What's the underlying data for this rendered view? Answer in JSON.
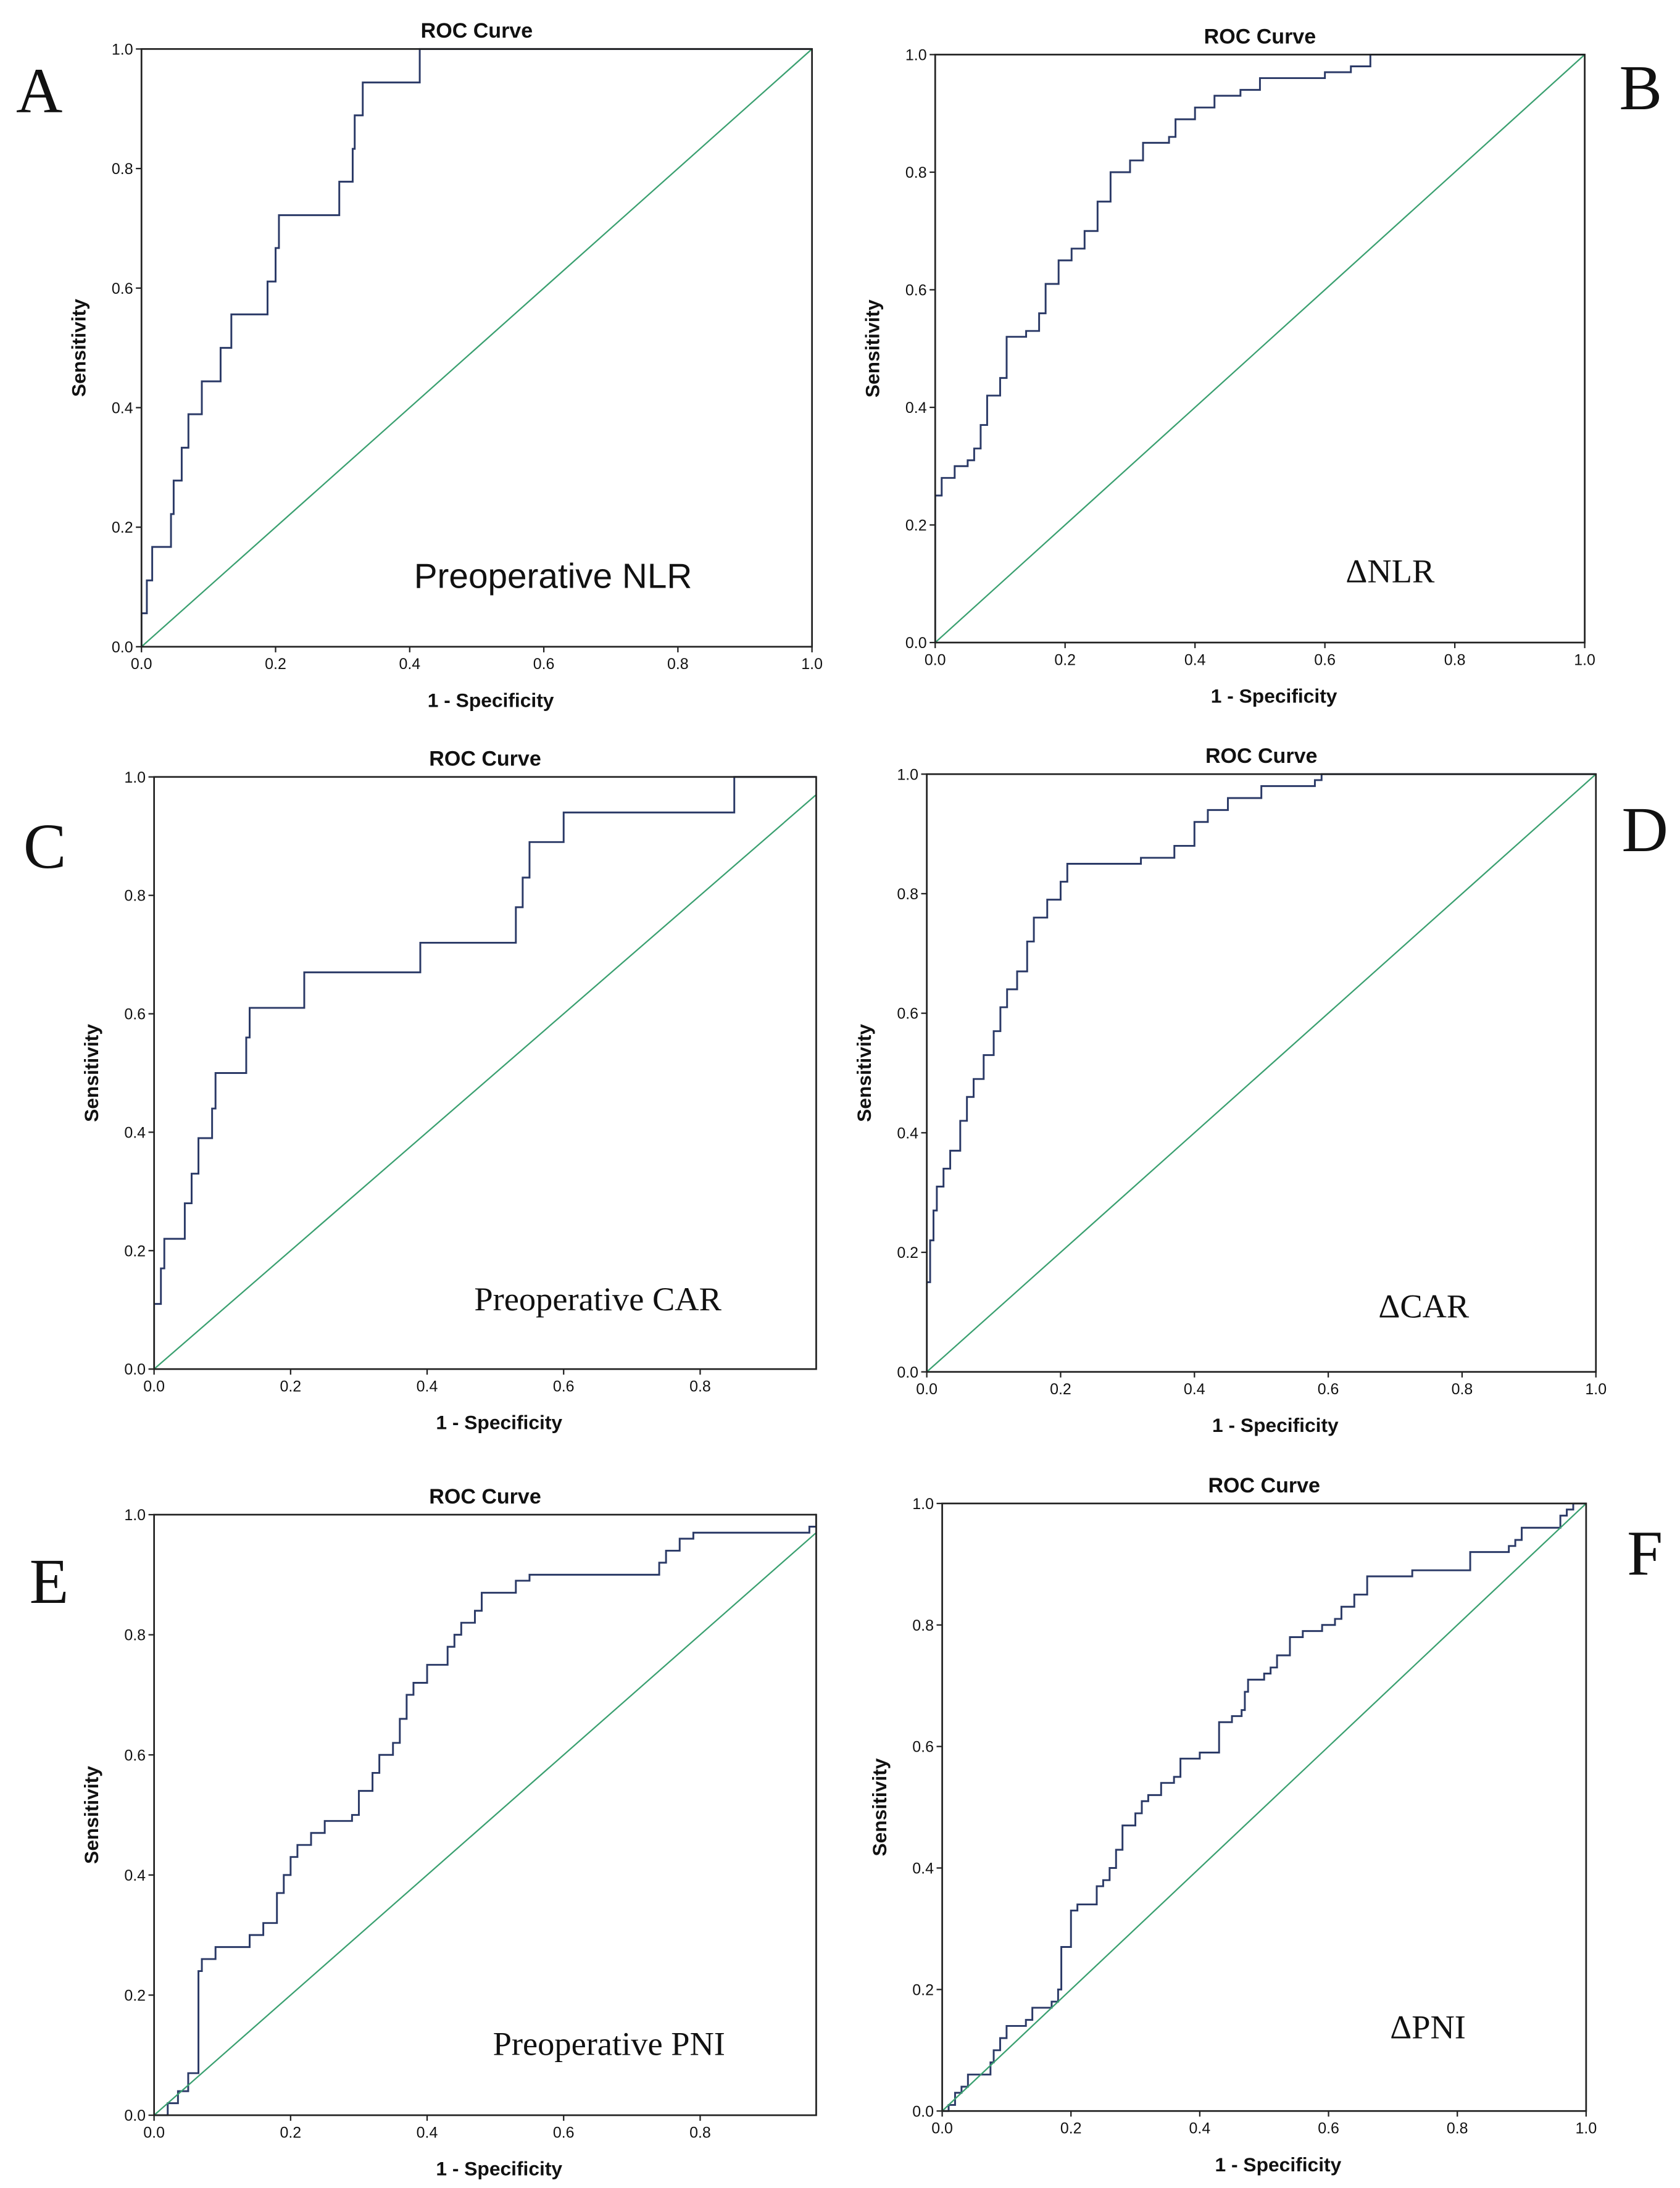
{
  "chart_data": [
    {
      "type": "line",
      "panel": "A",
      "title": "ROC Curve",
      "annotation": "Preoperative NLR",
      "xlabel": "1 - Specificity",
      "ylabel": "Sensitivity",
      "xlim": [
        0,
        1
      ],
      "ylim": [
        0,
        1
      ],
      "xticks": [
        "0.0",
        "0.2",
        "0.4",
        "0.6",
        "0.8",
        "1.0"
      ],
      "yticks": [
        "0.0",
        "0.2",
        "0.4",
        "0.6",
        "0.8",
        "1.0"
      ],
      "series": [
        {
          "name": "ROC",
          "color": "#2b3a67",
          "step": true,
          "points": [
            [
              0,
              0.056
            ],
            [
              0.008,
              0.111
            ],
            [
              0.016,
              0.167
            ],
            [
              0.044,
              0.222
            ],
            [
              0.048,
              0.278
            ],
            [
              0.06,
              0.333
            ],
            [
              0.07,
              0.389
            ],
            [
              0.09,
              0.444
            ],
            [
              0.118,
              0.5
            ],
            [
              0.134,
              0.556
            ],
            [
              0.188,
              0.611
            ],
            [
              0.2,
              0.667
            ],
            [
              0.205,
              0.722
            ],
            [
              0.295,
              0.778
            ],
            [
              0.315,
              0.833
            ],
            [
              0.318,
              0.889
            ],
            [
              0.33,
              0.944
            ],
            [
              0.415,
              1
            ],
            [
              1,
              1
            ]
          ]
        },
        {
          "name": "Reference line",
          "color": "#3aa070",
          "points": [
            [
              0,
              0
            ],
            [
              1,
              1
            ]
          ]
        }
      ]
    },
    {
      "type": "line",
      "panel": "B",
      "title": "ROC Curve",
      "annotation": "ΔNLR",
      "xlabel": "1 - Specificity",
      "ylabel": "Sensitivity",
      "xlim": [
        0,
        1
      ],
      "ylim": [
        0,
        1
      ],
      "xticks": [
        "0.0",
        "0.2",
        "0.4",
        "0.6",
        "0.8",
        "1.0"
      ],
      "yticks": [
        "0.0",
        "0.2",
        "0.4",
        "0.6",
        "0.8",
        "1.0"
      ],
      "series": [
        {
          "name": "ROC",
          "color": "#2b3a67",
          "step": true,
          "points": [
            [
              0,
              0.25
            ],
            [
              0.01,
              0.28
            ],
            [
              0.03,
              0.3
            ],
            [
              0.05,
              0.31
            ],
            [
              0.06,
              0.33
            ],
            [
              0.07,
              0.37
            ],
            [
              0.08,
              0.42
            ],
            [
              0.1,
              0.45
            ],
            [
              0.11,
              0.52
            ],
            [
              0.14,
              0.53
            ],
            [
              0.16,
              0.56
            ],
            [
              0.17,
              0.61
            ],
            [
              0.19,
              0.65
            ],
            [
              0.21,
              0.67
            ],
            [
              0.23,
              0.7
            ],
            [
              0.25,
              0.75
            ],
            [
              0.27,
              0.8
            ],
            [
              0.3,
              0.82
            ],
            [
              0.32,
              0.85
            ],
            [
              0.36,
              0.86
            ],
            [
              0.37,
              0.89
            ],
            [
              0.4,
              0.91
            ],
            [
              0.43,
              0.93
            ],
            [
              0.47,
              0.94
            ],
            [
              0.5,
              0.96
            ],
            [
              0.6,
              0.97
            ],
            [
              0.64,
              0.98
            ],
            [
              0.67,
              1
            ],
            [
              1,
              1
            ]
          ]
        },
        {
          "name": "Reference line",
          "color": "#3aa070",
          "points": [
            [
              0,
              0
            ],
            [
              1,
              1
            ]
          ]
        }
      ]
    },
    {
      "type": "line",
      "panel": "C",
      "title": "ROC Curve",
      "annotation": "Preoperative CAR",
      "xlabel": "1 - Specificity",
      "ylabel": "Sensitivity",
      "xlim": [
        0,
        0.97
      ],
      "ylim": [
        0,
        1
      ],
      "xticks": [
        "0.0",
        "0.2",
        "0.4",
        "0.6",
        "0.8"
      ],
      "yticks": [
        "0.0",
        "0.2",
        "0.4",
        "0.6",
        "0.8",
        "1.0"
      ],
      "series": [
        {
          "name": "ROC",
          "color": "#2b3a67",
          "step": true,
          "points": [
            [
              0,
              0.11
            ],
            [
              0.01,
              0.17
            ],
            [
              0.015,
              0.22
            ],
            [
              0.045,
              0.28
            ],
            [
              0.055,
              0.33
            ],
            [
              0.065,
              0.39
            ],
            [
              0.085,
              0.44
            ],
            [
              0.09,
              0.5
            ],
            [
              0.135,
              0.56
            ],
            [
              0.14,
              0.61
            ],
            [
              0.22,
              0.67
            ],
            [
              0.39,
              0.72
            ],
            [
              0.53,
              0.78
            ],
            [
              0.54,
              0.83
            ],
            [
              0.55,
              0.89
            ],
            [
              0.6,
              0.94
            ],
            [
              0.85,
              1
            ],
            [
              1,
              1
            ]
          ]
        },
        {
          "name": "Reference line",
          "color": "#3aa070",
          "points": [
            [
              0,
              0
            ],
            [
              1,
              1
            ]
          ]
        }
      ]
    },
    {
      "type": "line",
      "panel": "D",
      "title": "ROC Curve",
      "annotation": "ΔCAR",
      "xlabel": "1 - Specificity",
      "ylabel": "Sensitivity",
      "xlim": [
        0,
        1
      ],
      "ylim": [
        0,
        1
      ],
      "xticks": [
        "0.0",
        "0.2",
        "0.4",
        "0.6",
        "0.8",
        "1.0"
      ],
      "yticks": [
        "0.0",
        "0.2",
        "0.4",
        "0.6",
        "0.8",
        "1.0"
      ],
      "series": [
        {
          "name": "ROC",
          "color": "#2b3a67",
          "step": true,
          "points": [
            [
              0,
              0.15
            ],
            [
              0.005,
              0.22
            ],
            [
              0.01,
              0.27
            ],
            [
              0.015,
              0.31
            ],
            [
              0.025,
              0.34
            ],
            [
              0.035,
              0.37
            ],
            [
              0.05,
              0.42
            ],
            [
              0.06,
              0.46
            ],
            [
              0.07,
              0.49
            ],
            [
              0.085,
              0.53
            ],
            [
              0.1,
              0.57
            ],
            [
              0.11,
              0.61
            ],
            [
              0.12,
              0.64
            ],
            [
              0.135,
              0.67
            ],
            [
              0.15,
              0.72
            ],
            [
              0.16,
              0.76
            ],
            [
              0.18,
              0.79
            ],
            [
              0.2,
              0.82
            ],
            [
              0.21,
              0.85
            ],
            [
              0.32,
              0.86
            ],
            [
              0.37,
              0.88
            ],
            [
              0.4,
              0.92
            ],
            [
              0.42,
              0.94
            ],
            [
              0.45,
              0.96
            ],
            [
              0.5,
              0.98
            ],
            [
              0.58,
              0.99
            ],
            [
              0.59,
              1
            ],
            [
              1,
              1
            ]
          ]
        },
        {
          "name": "Reference line",
          "color": "#3aa070",
          "points": [
            [
              0,
              0
            ],
            [
              1,
              1
            ]
          ]
        }
      ]
    },
    {
      "type": "line",
      "panel": "E",
      "title": "ROC Curve",
      "annotation": "Preoperative PNI",
      "xlabel": "1 - Specificity",
      "ylabel": "Sensitivity",
      "xlim": [
        0,
        0.97
      ],
      "ylim": [
        0,
        1
      ],
      "xticks": [
        "0.0",
        "0.2",
        "0.4",
        "0.6",
        "0.8"
      ],
      "yticks": [
        "0.0",
        "0.2",
        "0.4",
        "0.6",
        "0.8",
        "1.0"
      ],
      "series": [
        {
          "name": "ROC",
          "color": "#2b3a67",
          "step": true,
          "points": [
            [
              0.02,
              0.02
            ],
            [
              0.035,
              0.04
            ],
            [
              0.05,
              0.07
            ],
            [
              0.065,
              0.24
            ],
            [
              0.07,
              0.26
            ],
            [
              0.09,
              0.28
            ],
            [
              0.14,
              0.3
            ],
            [
              0.16,
              0.32
            ],
            [
              0.18,
              0.37
            ],
            [
              0.19,
              0.4
            ],
            [
              0.2,
              0.43
            ],
            [
              0.21,
              0.45
            ],
            [
              0.23,
              0.47
            ],
            [
              0.25,
              0.49
            ],
            [
              0.29,
              0.5
            ],
            [
              0.3,
              0.54
            ],
            [
              0.32,
              0.57
            ],
            [
              0.33,
              0.6
            ],
            [
              0.35,
              0.62
            ],
            [
              0.36,
              0.66
            ],
            [
              0.37,
              0.7
            ],
            [
              0.38,
              0.72
            ],
            [
              0.4,
              0.75
            ],
            [
              0.43,
              0.78
            ],
            [
              0.44,
              0.8
            ],
            [
              0.45,
              0.82
            ],
            [
              0.47,
              0.84
            ],
            [
              0.48,
              0.87
            ],
            [
              0.53,
              0.89
            ],
            [
              0.55,
              0.9
            ],
            [
              0.74,
              0.92
            ],
            [
              0.75,
              0.94
            ],
            [
              0.77,
              0.96
            ],
            [
              0.79,
              0.97
            ],
            [
              0.96,
              0.98
            ],
            [
              0.97,
              1
            ],
            [
              1,
              1
            ]
          ]
        },
        {
          "name": "Reference line",
          "color": "#3aa070",
          "points": [
            [
              0,
              0
            ],
            [
              1,
              1
            ]
          ]
        }
      ]
    },
    {
      "type": "line",
      "panel": "F",
      "title": "ROC Curve",
      "annotation": "ΔPNI",
      "xlabel": "1 - Specificity",
      "ylabel": "Sensitivity",
      "xlim": [
        0,
        1
      ],
      "ylim": [
        0,
        1
      ],
      "xticks": [
        "0.0",
        "0.2",
        "0.4",
        "0.6",
        "0.8",
        "1.0"
      ],
      "yticks": [
        "0.0",
        "0.2",
        "0.4",
        "0.6",
        "0.8",
        "1.0"
      ],
      "series": [
        {
          "name": "ROC",
          "color": "#2b3a67",
          "step": true,
          "points": [
            [
              0.01,
              0.01
            ],
            [
              0.02,
              0.03
            ],
            [
              0.03,
              0.04
            ],
            [
              0.04,
              0.06
            ],
            [
              0.075,
              0.08
            ],
            [
              0.08,
              0.1
            ],
            [
              0.09,
              0.12
            ],
            [
              0.1,
              0.14
            ],
            [
              0.13,
              0.15
            ],
            [
              0.14,
              0.17
            ],
            [
              0.17,
              0.18
            ],
            [
              0.18,
              0.2
            ],
            [
              0.185,
              0.27
            ],
            [
              0.2,
              0.33
            ],
            [
              0.21,
              0.34
            ],
            [
              0.24,
              0.37
            ],
            [
              0.25,
              0.38
            ],
            [
              0.26,
              0.4
            ],
            [
              0.27,
              0.43
            ],
            [
              0.28,
              0.47
            ],
            [
              0.3,
              0.49
            ],
            [
              0.31,
              0.51
            ],
            [
              0.32,
              0.52
            ],
            [
              0.34,
              0.54
            ],
            [
              0.36,
              0.55
            ],
            [
              0.37,
              0.58
            ],
            [
              0.4,
              0.59
            ],
            [
              0.43,
              0.64
            ],
            [
              0.45,
              0.65
            ],
            [
              0.465,
              0.66
            ],
            [
              0.47,
              0.69
            ],
            [
              0.475,
              0.71
            ],
            [
              0.5,
              0.72
            ],
            [
              0.51,
              0.73
            ],
            [
              0.52,
              0.75
            ],
            [
              0.54,
              0.78
            ],
            [
              0.56,
              0.79
            ],
            [
              0.59,
              0.8
            ],
            [
              0.61,
              0.81
            ],
            [
              0.62,
              0.83
            ],
            [
              0.64,
              0.85
            ],
            [
              0.66,
              0.88
            ],
            [
              0.73,
              0.89
            ],
            [
              0.82,
              0.92
            ],
            [
              0.88,
              0.93
            ],
            [
              0.89,
              0.94
            ],
            [
              0.9,
              0.96
            ],
            [
              0.93,
              0.96
            ],
            [
              0.96,
              0.98
            ],
            [
              0.97,
              0.99
            ],
            [
              0.98,
              1
            ],
            [
              1,
              1
            ]
          ]
        },
        {
          "name": "Reference line",
          "color": "#3aa070",
          "points": [
            [
              0,
              0
            ],
            [
              1,
              1
            ]
          ]
        }
      ]
    }
  ]
}
